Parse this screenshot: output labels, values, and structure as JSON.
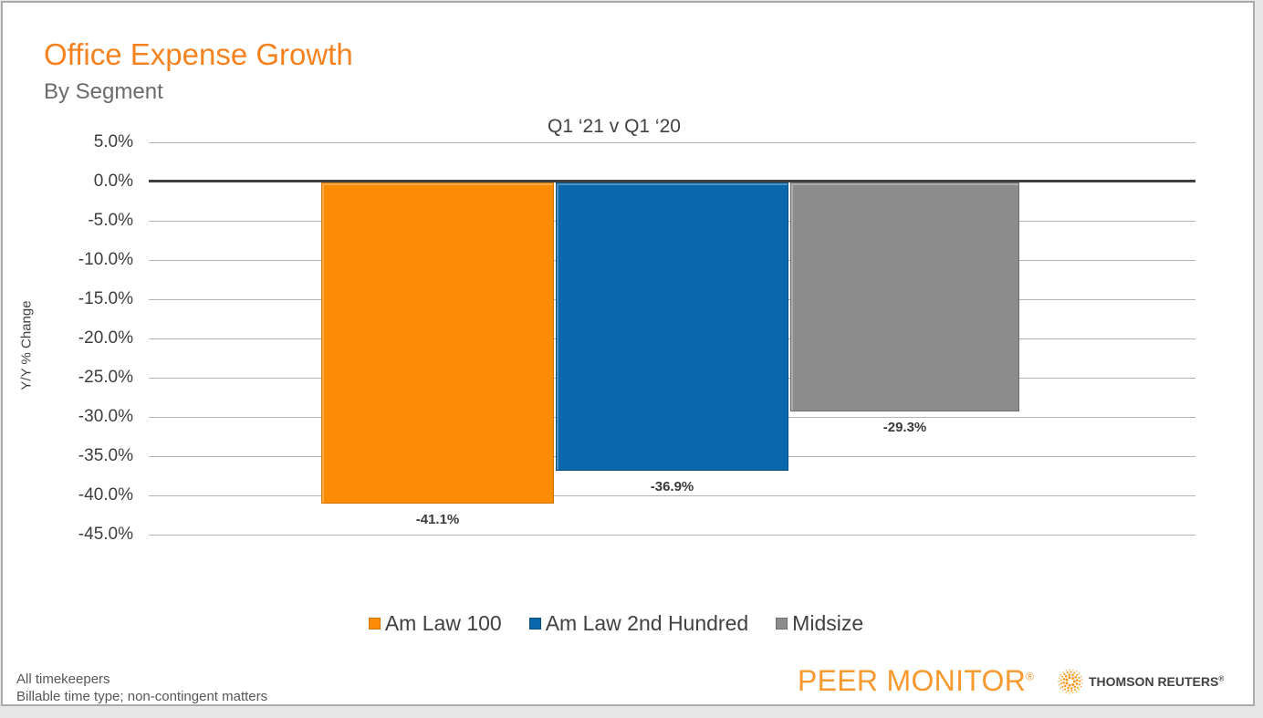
{
  "title": "Office Expense Growth",
  "subtitle": "By Segment",
  "chart_data": {
    "type": "bar",
    "title": "Q1 ‘21 v Q1 ‘20",
    "ylabel": "Y/Y % Change",
    "categories": [
      "Am Law 100",
      "Am Law 2nd Hundred",
      "Midsize"
    ],
    "values": [
      -41.1,
      -36.9,
      -29.3
    ],
    "value_labels": [
      "-41.1%",
      "-36.9%",
      "-29.3%"
    ],
    "bar_colors": [
      "#FD8C05",
      "#0A67AC",
      "#8C8C8C"
    ],
    "bar_border_colors": [
      "#D27505",
      "#07507F",
      "#6E6E6E"
    ],
    "ylim": [
      5,
      -45
    ],
    "yticks": [
      {
        "label": "5.0%",
        "value": 5
      },
      {
        "label": "0.0%",
        "value": 0
      },
      {
        "label": "-5.0%",
        "value": -5
      },
      {
        "label": "-10.0%",
        "value": -10
      },
      {
        "label": "-15.0%",
        "value": -15
      },
      {
        "label": "-20.0%",
        "value": -20
      },
      {
        "label": "-25.0%",
        "value": -25
      },
      {
        "label": "-30.0%",
        "value": -30
      },
      {
        "label": "-35.0%",
        "value": -35
      },
      {
        "label": "-40.0%",
        "value": -40
      },
      {
        "label": "-45.0%",
        "value": -45
      }
    ],
    "grid": true,
    "legend_position": "bottom"
  },
  "footer": {
    "line1": "All timekeepers",
    "line2": "Billable time type; non-contingent matters"
  },
  "branding": {
    "peer_monitor": "PEER MONITOR",
    "peer_monitor_reg": "®",
    "thomson_reuters": "THOMSON REUTERS",
    "thomson_reuters_reg": "®",
    "logo_color": "#F8971D"
  }
}
